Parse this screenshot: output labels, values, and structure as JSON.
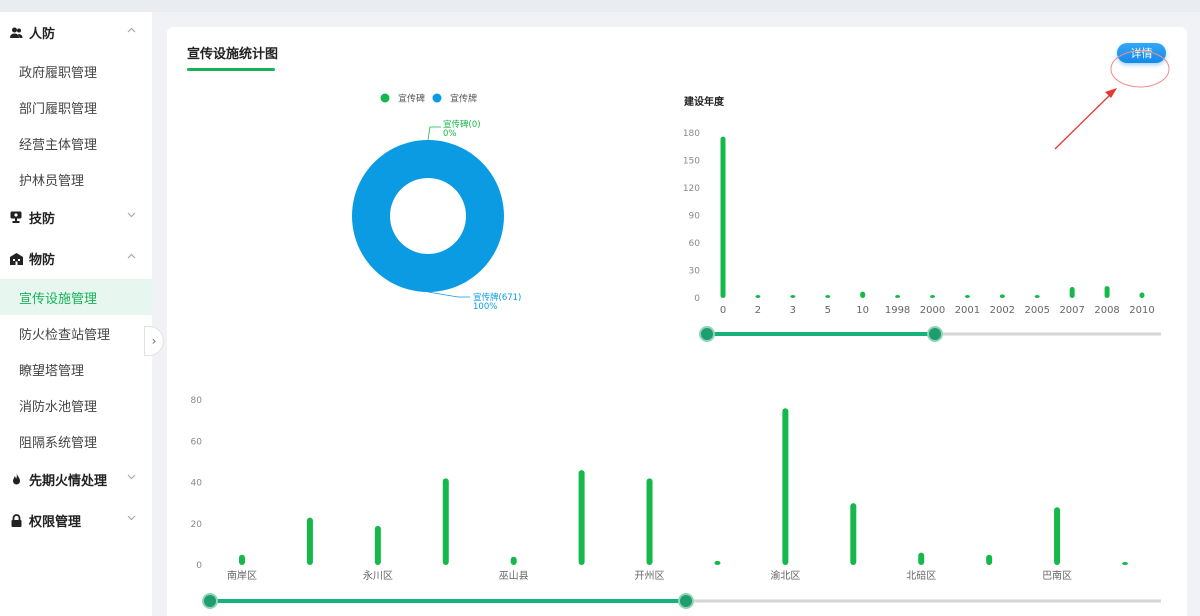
{
  "sidebar": {
    "groups": [
      {
        "label": "人防",
        "icon": "users-icon",
        "expanded": true,
        "items": [
          "政府履职管理",
          "部门履职管理",
          "经营主体管理",
          "护林员管理"
        ]
      },
      {
        "label": "技防",
        "icon": "camera-icon",
        "expanded": false,
        "items": []
      },
      {
        "label": "物防",
        "icon": "building-icon",
        "expanded": true,
        "items": [
          "宣传设施管理",
          "防火检查站管理",
          "瞭望塔管理",
          "消防水池管理",
          "阻隔系统管理"
        ]
      },
      {
        "label": "先期火情处理",
        "icon": "fire-icon",
        "expanded": false,
        "items": []
      },
      {
        "label": "权限管理",
        "icon": "lock-icon",
        "expanded": false,
        "items": []
      }
    ],
    "active_item": "宣传设施管理"
  },
  "card": {
    "title": "宣传设施统计图",
    "detail_label": "详情"
  },
  "colors": {
    "green": "#15b84a",
    "blue": "#0a9be3",
    "accent": "#16b25a"
  },
  "chart_data": [
    {
      "type": "pie",
      "legend": [
        "宣传碑",
        "宣传牌"
      ],
      "slices": [
        {
          "name": "宣传碑",
          "value": 0,
          "percent": "0%",
          "label": "宣传碑(0)"
        },
        {
          "name": "宣传牌",
          "value": 671,
          "percent": "100%",
          "label": "宣传牌(671)"
        }
      ]
    },
    {
      "type": "bar",
      "title": "建设年度",
      "categories": [
        "0",
        "2",
        "3",
        "5",
        "10",
        "1998",
        "2000",
        "2001",
        "2002",
        "2005",
        "2007",
        "2008",
        "2010"
      ],
      "values": [
        176,
        1,
        1,
        1,
        7,
        1,
        3,
        2,
        4,
        3,
        12,
        13,
        6
      ],
      "yticks": [
        0,
        30,
        60,
        90,
        120,
        150,
        180
      ],
      "ylim": [
        0,
        180
      ]
    },
    {
      "type": "bar",
      "categories": [
        "南岸区",
        "",
        "永川区",
        "",
        "巫山县",
        "",
        "开州区",
        "",
        "渝北区",
        "",
        "北碚区",
        "",
        "巴南区",
        ""
      ],
      "values": [
        5,
        23,
        19,
        42,
        4,
        46,
        42,
        2,
        76,
        30,
        6,
        5,
        28,
        1
      ],
      "yticks": [
        0,
        20,
        40,
        60,
        80
      ],
      "ylim": [
        0,
        80
      ]
    }
  ]
}
